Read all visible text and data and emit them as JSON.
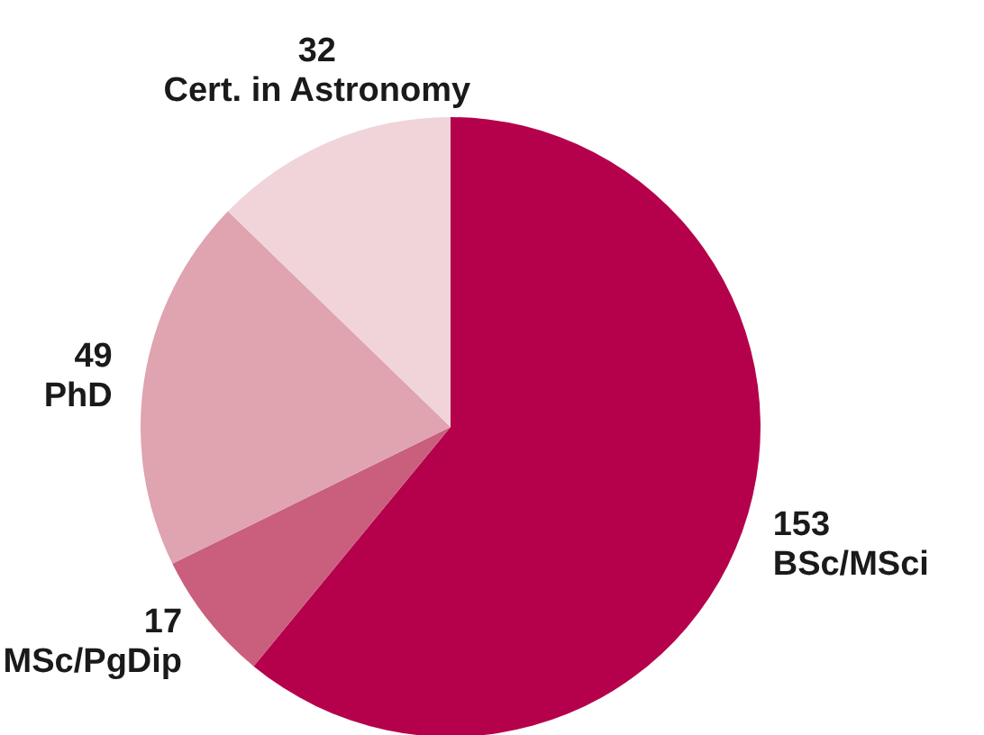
{
  "chart_data": {
    "type": "pie",
    "categories": [
      "BSc/MSci",
      "MSc/PgDip",
      "PhD",
      "Cert. in Astronomy"
    ],
    "values": [
      153,
      17,
      49,
      32
    ],
    "colors": [
      "#b5004b",
      "#c95f7d",
      "#e0a3b0",
      "#f0d4da"
    ],
    "data_labels": true
  }
}
